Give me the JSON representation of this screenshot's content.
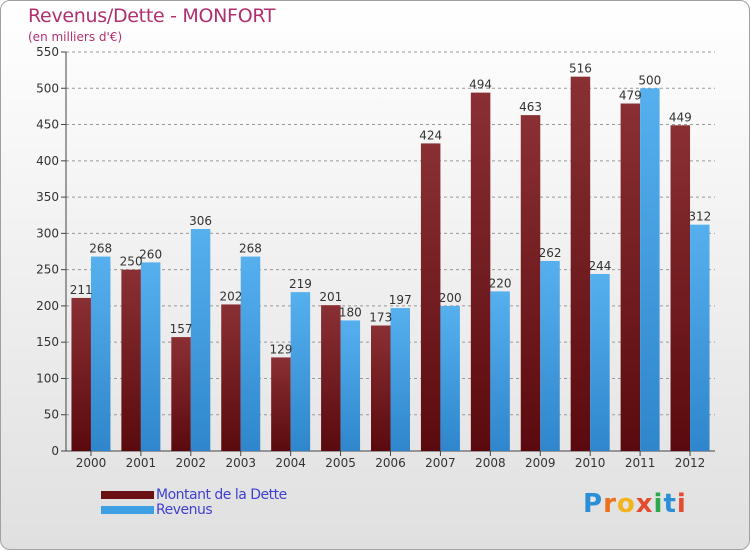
{
  "header": {
    "title": "Revenus/Dette - MONFORT",
    "subtitle": "(en milliers d'€)"
  },
  "legend": {
    "dette": "Montant de la Dette",
    "revenus": "Revenus"
  },
  "logo": {
    "letters": [
      "P",
      "r",
      "o",
      "x",
      "i",
      "t",
      "i"
    ],
    "colors": [
      "#2a8fd6",
      "#e9711f",
      "#f2b31c",
      "#e54b2f",
      "#2aa84a",
      "#2a8fd6",
      "#e54b2f"
    ]
  },
  "colors": {
    "dette": "#6b1116",
    "revenus": "#3f9fe3",
    "grid": "#999999",
    "text": "#333333"
  },
  "chart_data": {
    "type": "bar",
    "title": "Revenus/Dette - MONFORT",
    "subtitle": "(en milliers d'€)",
    "categories": [
      "2000",
      "2001",
      "2002",
      "2003",
      "2004",
      "2005",
      "2006",
      "2007",
      "2008",
      "2009",
      "2010",
      "2011",
      "2012"
    ],
    "series": [
      {
        "name": "Montant de la Dette",
        "values": [
          211,
          250,
          157,
          202,
          129,
          201,
          173,
          424,
          494,
          463,
          516,
          479,
          449
        ]
      },
      {
        "name": "Revenus",
        "values": [
          268,
          260,
          306,
          268,
          219,
          180,
          197,
          200,
          220,
          262,
          244,
          500,
          312
        ]
      }
    ],
    "ylim": [
      0,
      550
    ],
    "yticks": [
      0,
      50,
      100,
      150,
      200,
      250,
      300,
      350,
      400,
      450,
      500,
      550
    ],
    "grid": true,
    "legend_position": "bottom-left"
  }
}
